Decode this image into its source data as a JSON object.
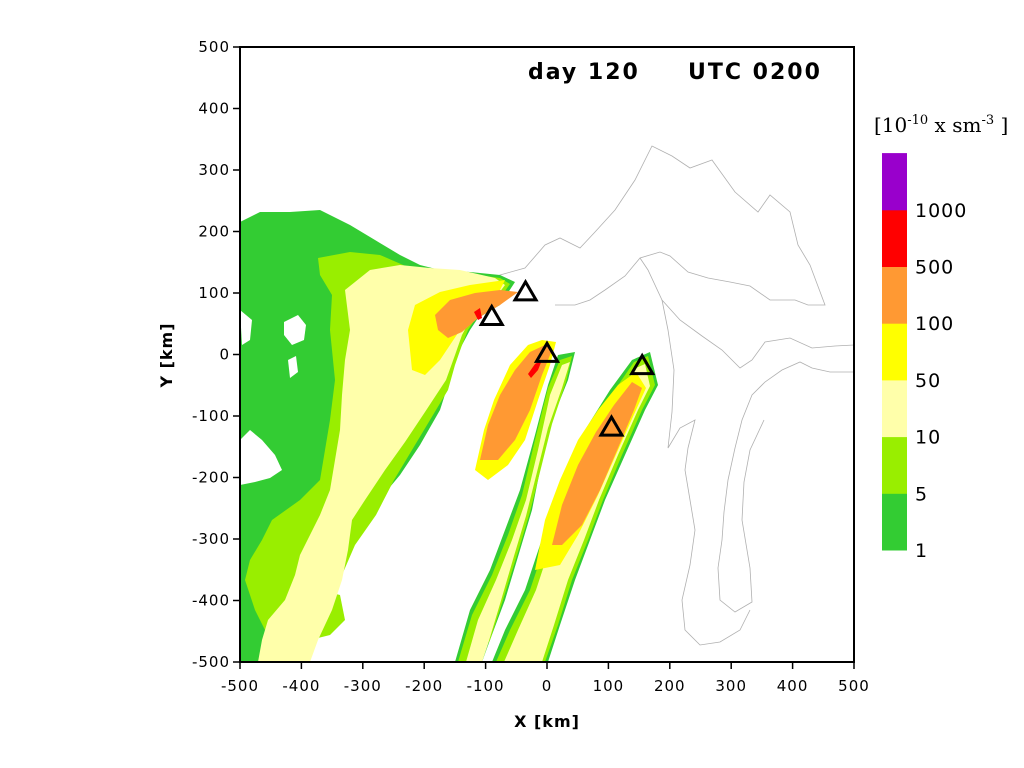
{
  "chart_data": {
    "type": "filled-contour",
    "title_day": "day 120",
    "title_utc": "UTC 0200",
    "xlabel": "X [km]",
    "ylabel": "Y [km]",
    "xlim": [
      -500,
      500
    ],
    "ylim": [
      -500,
      500
    ],
    "xticks": [
      "-500",
      "-400",
      "-300",
      "-200",
      "-100",
      "0",
      "100",
      "200",
      "300",
      "400",
      "500"
    ],
    "yticks": [
      "500",
      "400",
      "300",
      "200",
      "100",
      "0",
      "-100",
      "-200",
      "-300",
      "-400",
      "-500"
    ],
    "xtick_values": [
      -500,
      -400,
      -300,
      -200,
      -100,
      0,
      100,
      200,
      300,
      400,
      500
    ],
    "ytick_values": [
      500,
      400,
      300,
      200,
      100,
      0,
      -100,
      -200,
      -300,
      -400,
      -500
    ],
    "colorbar": {
      "unit_base": "[10",
      "unit_exp1": "-10",
      "unit_mid": " x sm",
      "unit_exp2": "-3",
      "unit_end": " ]",
      "levels": [
        "1",
        "5",
        "10",
        "50",
        "100",
        "500",
        "1000"
      ],
      "colors": [
        "#33cc33",
        "#99ee00",
        "#ffffaa",
        "#ffff00",
        "#ff9933",
        "#ff0000",
        "#9900cc"
      ]
    },
    "sources": [
      {
        "x": -35,
        "y": 100
      },
      {
        "x": -90,
        "y": 60
      },
      {
        "x": 0,
        "y": 0
      },
      {
        "x": 155,
        "y": -20
      },
      {
        "x": 105,
        "y": -120
      }
    ]
  }
}
